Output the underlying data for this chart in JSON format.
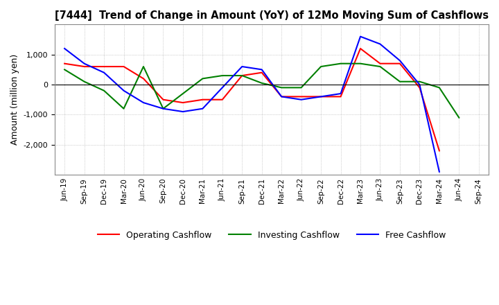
{
  "title": "[7444]  Trend of Change in Amount (YoY) of 12Mo Moving Sum of Cashflows",
  "ylabel": "Amount (million yen)",
  "x_labels": [
    "Jun-19",
    "Sep-19",
    "Dec-19",
    "Mar-20",
    "Jun-20",
    "Sep-20",
    "Dec-20",
    "Mar-21",
    "Jun-21",
    "Sep-21",
    "Dec-21",
    "Mar-22",
    "Jun-22",
    "Sep-22",
    "Dec-22",
    "Mar-23",
    "Jun-23",
    "Sep-23",
    "Dec-23",
    "Mar-24",
    "Jun-24",
    "Sep-24"
  ],
  "operating": [
    700,
    600,
    600,
    600,
    200,
    -500,
    -600,
    -500,
    -500,
    300,
    400,
    -400,
    -400,
    -400,
    -400,
    1200,
    700,
    700,
    -100,
    -2200,
    null,
    null
  ],
  "investing": [
    500,
    100,
    -200,
    -800,
    600,
    -800,
    -300,
    200,
    300,
    300,
    50,
    -100,
    -100,
    600,
    700,
    700,
    600,
    100,
    100,
    -100,
    -1100,
    null
  ],
  "free": [
    1200,
    700,
    400,
    -200,
    -600,
    -800,
    -900,
    -800,
    -100,
    600,
    500,
    -400,
    -500,
    -400,
    -300,
    1600,
    1350,
    800,
    0,
    -2900,
    null,
    null
  ],
  "operating_color": "#ff0000",
  "investing_color": "#008000",
  "free_color": "#0000ff",
  "ylim": [
    -3000,
    2000
  ],
  "yticks": [
    -2000,
    -1000,
    0,
    1000
  ],
  "background_color": "#ffffff",
  "grid_color": "#aaaaaa"
}
